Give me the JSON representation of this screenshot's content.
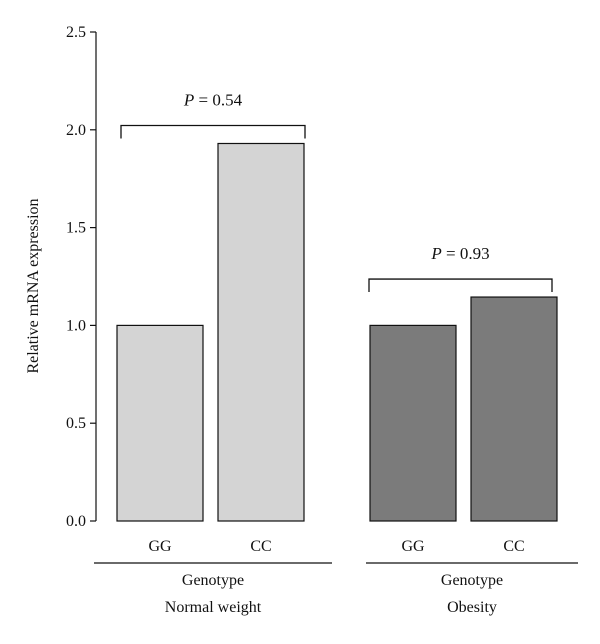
{
  "chart_data": {
    "type": "bar",
    "ylabel": "Relative mRNA expression",
    "ylim": [
      0,
      2.5
    ],
    "yticks": [
      "0.0",
      "0.5",
      "1.0",
      "1.5",
      "2.0",
      "2.5"
    ],
    "groups": [
      {
        "name": "Normal weight",
        "subtitle": "Genotype",
        "categories": [
          "GG",
          "CC"
        ],
        "values": [
          1.0,
          1.93
        ],
        "color": "#d4d4d4",
        "p_italic": "P",
        "p_rest": " = 0.54"
      },
      {
        "name": "Obesity",
        "subtitle": "Genotype",
        "categories": [
          "GG",
          "CC"
        ],
        "values": [
          1.0,
          1.145
        ],
        "color": "#7b7b7b",
        "p_italic": "P",
        "p_rest": " = 0.93"
      }
    ],
    "grid": false
  }
}
